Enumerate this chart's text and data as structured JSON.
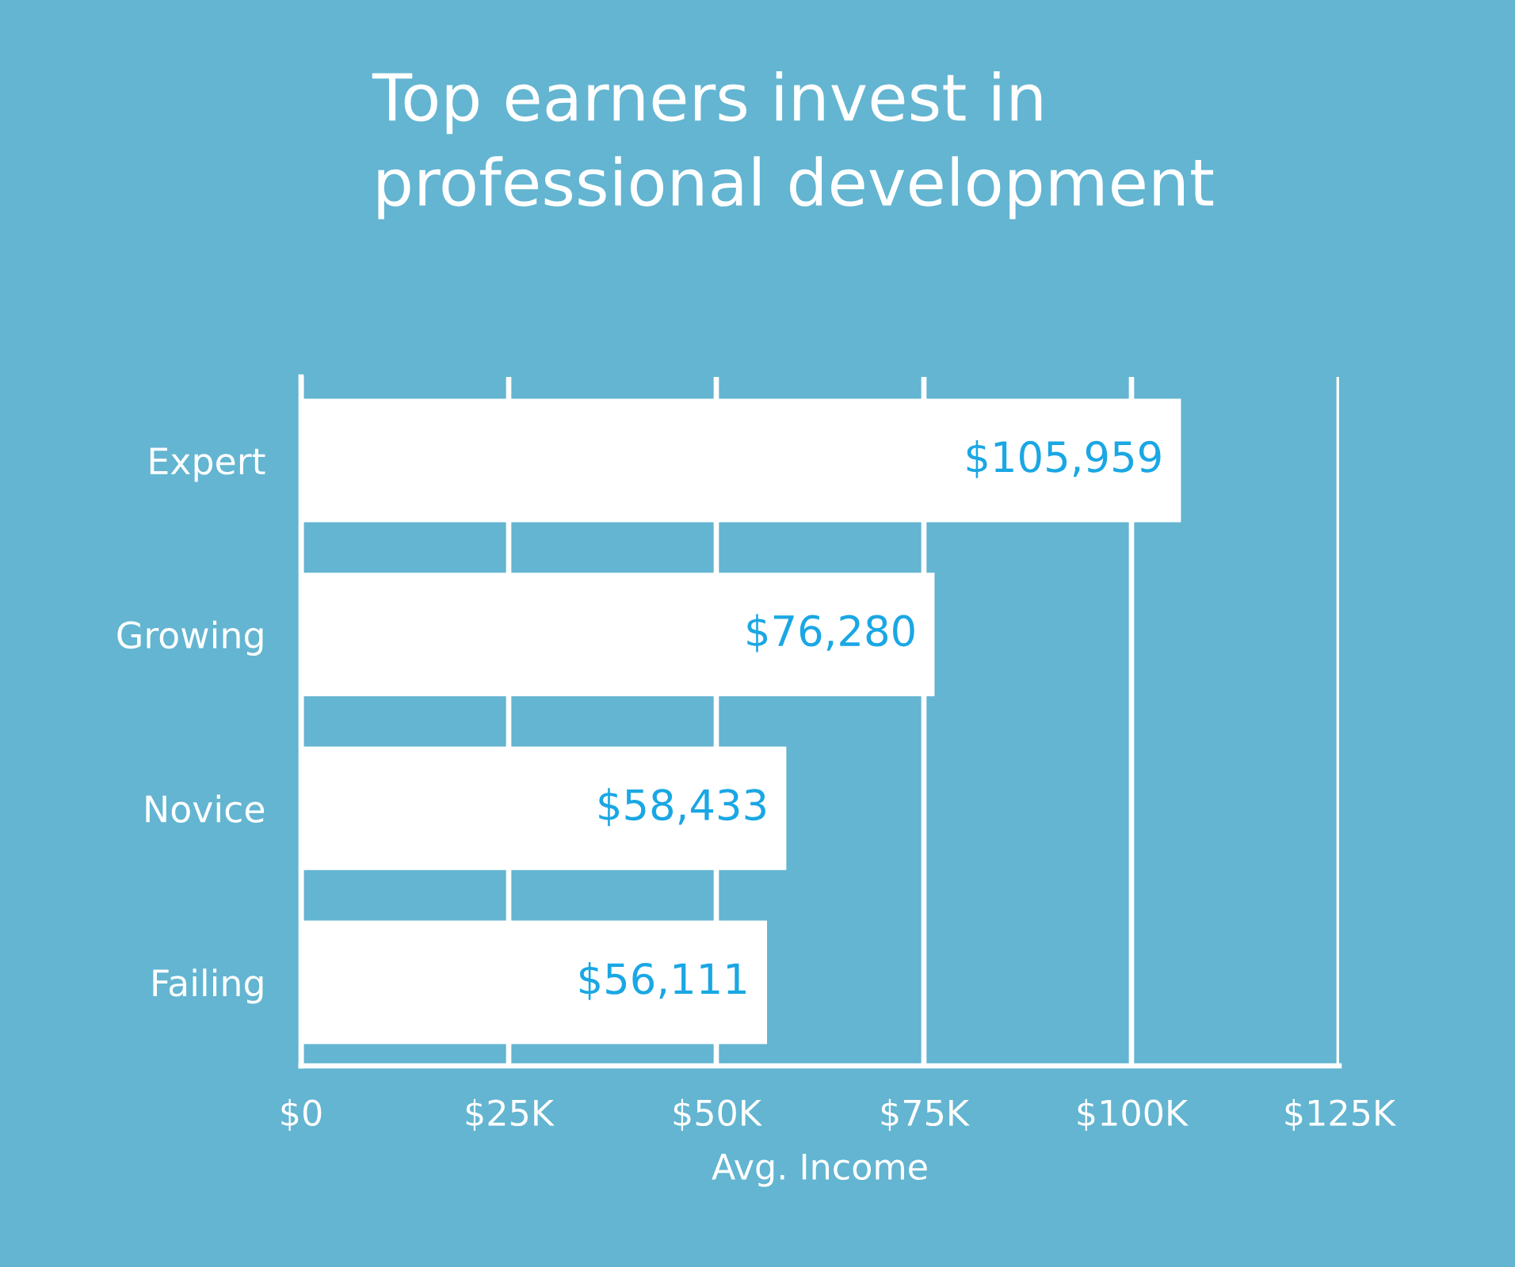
{
  "chart_data": {
    "type": "bar",
    "orientation": "horizontal",
    "title": "Top earners invest in\nprofessional development",
    "xlabel": "Avg. Income",
    "categories": [
      "Expert",
      "Growing",
      "Novice",
      "Failing"
    ],
    "values": [
      105959,
      76280,
      58433,
      56111
    ],
    "value_labels": [
      "$105,959",
      "$76,280",
      "$58,433",
      "$56,111"
    ],
    "color": "#ffffff",
    "xlim": [
      0,
      125000
    ],
    "xticks": [
      {
        "value": 0,
        "label": "$0"
      },
      {
        "value": 25000,
        "label": "$25K"
      },
      {
        "value": 50000,
        "label": "$50K"
      },
      {
        "value": 75000,
        "label": "$75K"
      },
      {
        "value": 100000,
        "label": "$100K"
      },
      {
        "value": 125000,
        "label": "$125K"
      }
    ],
    "grid": "x"
  }
}
